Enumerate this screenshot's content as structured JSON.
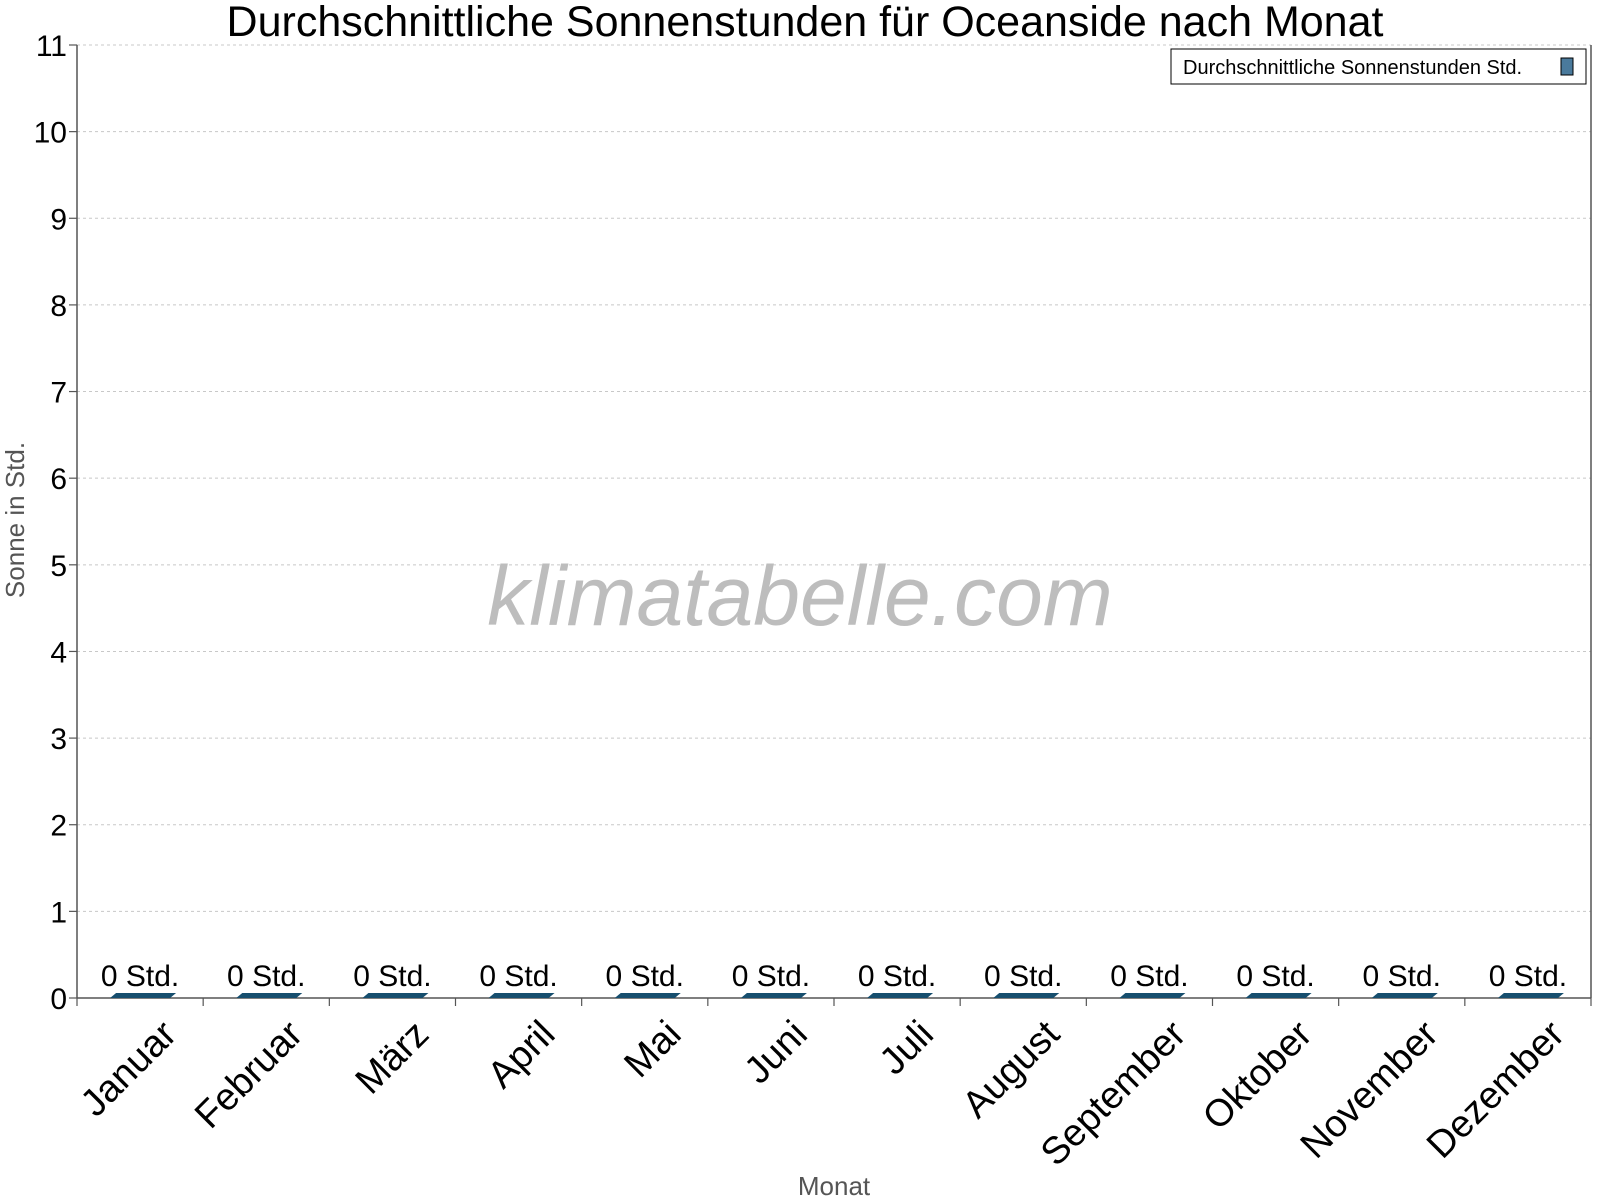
{
  "watermark": "klimatabelle.com",
  "chart_data": {
    "type": "bar",
    "title": "Durchschnittliche Sonnenstunden für Oceanside nach Monat",
    "xlabel": "Monat",
    "ylabel": "Sonne in Std.",
    "ylim": [
      0,
      11
    ],
    "y_ticks": [
      "0",
      "1",
      "2",
      "3",
      "4",
      "5",
      "6",
      "7",
      "8",
      "9",
      "10",
      "11"
    ],
    "grid": true,
    "legend_position": "top-right",
    "categories": [
      "Januar",
      "Februar",
      "März",
      "April",
      "Mai",
      "Juni",
      "Juli",
      "August",
      "September",
      "Oktober",
      "November",
      "Dezember"
    ],
    "series": [
      {
        "name": "Durchschnittliche Sonnenstunden Std.",
        "color": "#164e6e",
        "values": [
          0,
          0,
          0,
          0,
          0,
          0,
          0,
          0,
          0,
          0,
          0,
          0
        ],
        "value_labels": [
          "0 Std.",
          "0 Std.",
          "0 Std.",
          "0 Std.",
          "0 Std.",
          "0 Std.",
          "0 Std.",
          "0 Std.",
          "0 Std.",
          "0 Std.",
          "0 Std.",
          "0 Std."
        ]
      }
    ]
  }
}
